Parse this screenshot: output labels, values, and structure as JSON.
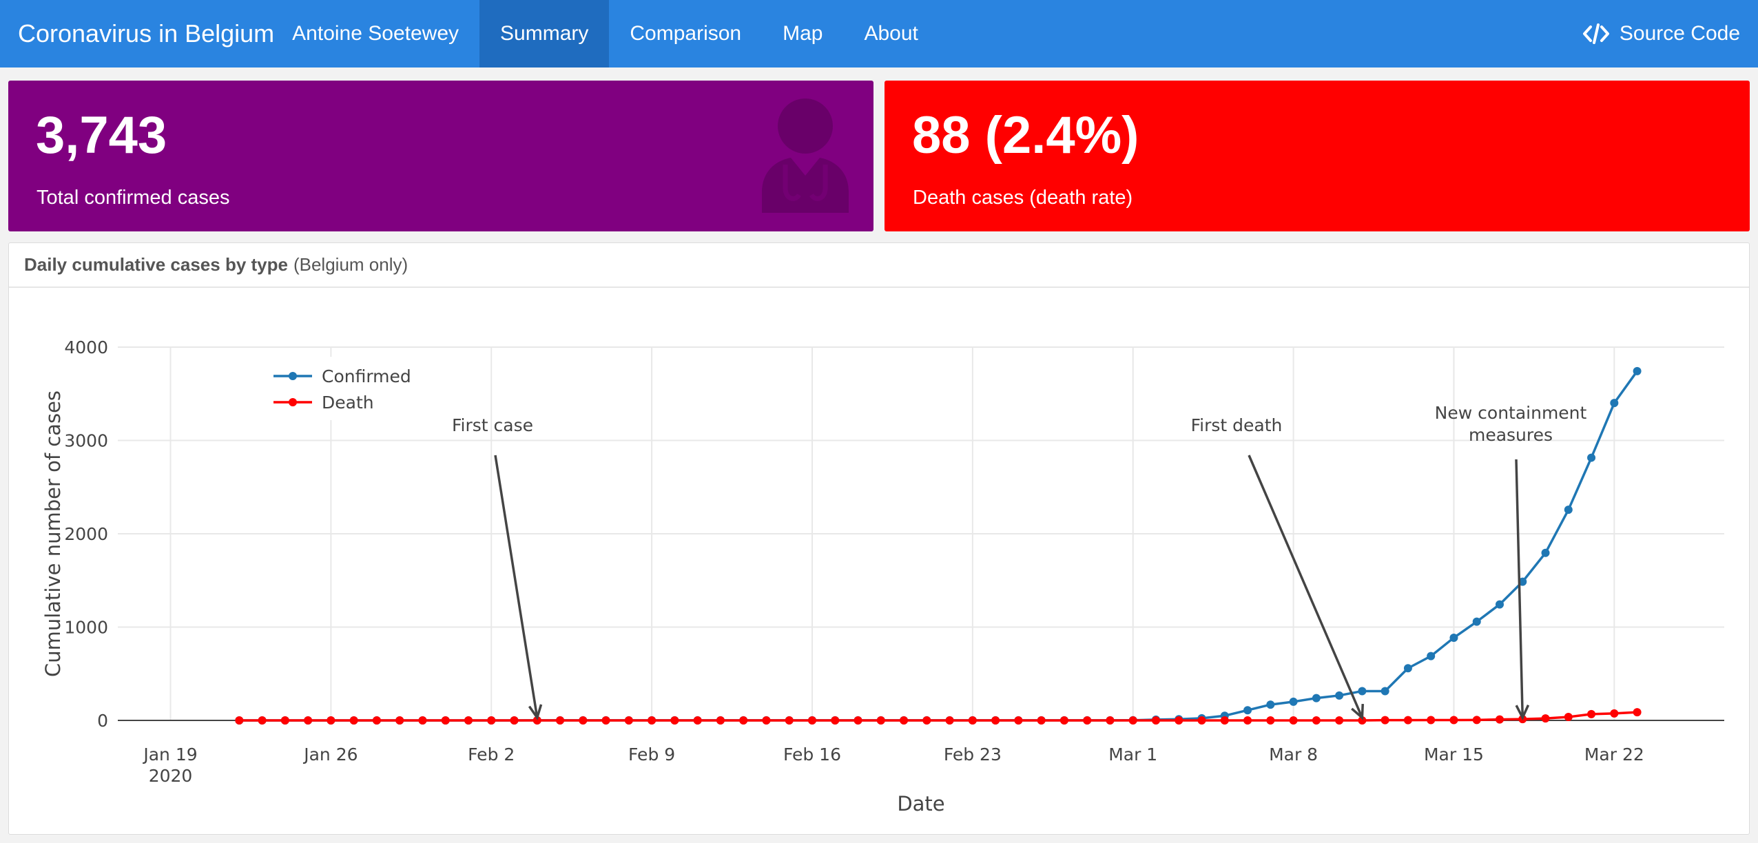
{
  "navbar": {
    "brand": "Coronavirus in Belgium",
    "author": "Antoine Soetewey",
    "tabs": [
      {
        "label": "Summary",
        "active": true
      },
      {
        "label": "Comparison",
        "active": false
      },
      {
        "label": "Map",
        "active": false
      },
      {
        "label": "About",
        "active": false
      }
    ],
    "source_label": "Source Code",
    "source_icon": "code-icon",
    "color": "#2a84e0"
  },
  "value_boxes": [
    {
      "value": "3,743",
      "subtitle": "Total confirmed cases",
      "color": "#800080",
      "icon": "user-doctor-icon"
    },
    {
      "value": "88 (2.4%)",
      "subtitle": "Death cases (death rate)",
      "color": "#ff0000"
    }
  ],
  "panel": {
    "title_bold": "Daily cumulative cases by type",
    "title_rest": "(Belgium only)"
  },
  "chart_data": {
    "type": "line",
    "x_start": "2020-01-22",
    "x": [
      "Jan 22",
      "Jan 23",
      "Jan 24",
      "Jan 25",
      "Jan 26",
      "Jan 27",
      "Jan 28",
      "Jan 29",
      "Jan 30",
      "Jan 31",
      "Feb 1",
      "Feb 2",
      "Feb 3",
      "Feb 4",
      "Feb 5",
      "Feb 6",
      "Feb 7",
      "Feb 8",
      "Feb 9",
      "Feb 10",
      "Feb 11",
      "Feb 12",
      "Feb 13",
      "Feb 14",
      "Feb 15",
      "Feb 16",
      "Feb 17",
      "Feb 18",
      "Feb 19",
      "Feb 20",
      "Feb 21",
      "Feb 22",
      "Feb 23",
      "Feb 24",
      "Feb 25",
      "Feb 26",
      "Feb 27",
      "Feb 28",
      "Feb 29",
      "Mar 1",
      "Mar 2",
      "Mar 3",
      "Mar 4",
      "Mar 5",
      "Mar 6",
      "Mar 7",
      "Mar 8",
      "Mar 9",
      "Mar 10",
      "Mar 11",
      "Mar 12",
      "Mar 13",
      "Mar 14",
      "Mar 15",
      "Mar 16",
      "Mar 17",
      "Mar 18",
      "Mar 19",
      "Mar 20",
      "Mar 21",
      "Mar 22",
      "Mar 23"
    ],
    "series": [
      {
        "name": "Confirmed",
        "color": "#1f77b4",
        "values": [
          0,
          0,
          0,
          0,
          0,
          0,
          0,
          0,
          0,
          0,
          0,
          0,
          0,
          1,
          1,
          1,
          1,
          1,
          1,
          1,
          1,
          1,
          1,
          1,
          1,
          1,
          1,
          1,
          1,
          1,
          1,
          1,
          1,
          1,
          1,
          1,
          1,
          1,
          1,
          2,
          8,
          13,
          23,
          50,
          109,
          169,
          200,
          239,
          267,
          314,
          314,
          559,
          689,
          886,
          1058,
          1243,
          1486,
          1795,
          2257,
          2815,
          3401,
          3743
        ]
      },
      {
        "name": "Death",
        "color": "#ff0000",
        "values": [
          0,
          0,
          0,
          0,
          0,
          0,
          0,
          0,
          0,
          0,
          0,
          0,
          0,
          0,
          0,
          0,
          0,
          0,
          0,
          0,
          0,
          0,
          0,
          0,
          0,
          0,
          0,
          0,
          0,
          0,
          0,
          0,
          0,
          0,
          0,
          0,
          0,
          0,
          0,
          0,
          0,
          0,
          0,
          0,
          0,
          0,
          0,
          0,
          0,
          0,
          3,
          3,
          4,
          4,
          5,
          10,
          14,
          21,
          37,
          67,
          75,
          88
        ]
      }
    ],
    "xlabel": "Date",
    "ylabel": "Cumulative number of cases",
    "ylim": [
      0,
      4000
    ],
    "yticks": [
      0,
      1000,
      2000,
      3000,
      4000
    ],
    "xticks": [
      {
        "date": "Jan 19",
        "label": "Jan 19",
        "sub": "2020"
      },
      {
        "date": "Jan 26",
        "label": "Jan 26"
      },
      {
        "date": "Feb 2",
        "label": "Feb 2"
      },
      {
        "date": "Feb 9",
        "label": "Feb 9"
      },
      {
        "date": "Feb 16",
        "label": "Feb 16"
      },
      {
        "date": "Feb 23",
        "label": "Feb 23"
      },
      {
        "date": "Mar 1",
        "label": "Mar 1"
      },
      {
        "date": "Mar 8",
        "label": "Mar 8"
      },
      {
        "date": "Mar 15",
        "label": "Mar 15"
      },
      {
        "date": "Mar 22",
        "label": "Mar 22"
      }
    ],
    "annotations": [
      {
        "date": "Feb 4",
        "value": 0,
        "lines": [
          "First case"
        ]
      },
      {
        "date": "Mar 11",
        "value": 0,
        "lines": [
          "First death"
        ]
      },
      {
        "date": "Mar 18",
        "value": 0,
        "lines": [
          "New containment",
          "measures"
        ]
      }
    ],
    "grid": true,
    "legend_position": "top-left"
  }
}
